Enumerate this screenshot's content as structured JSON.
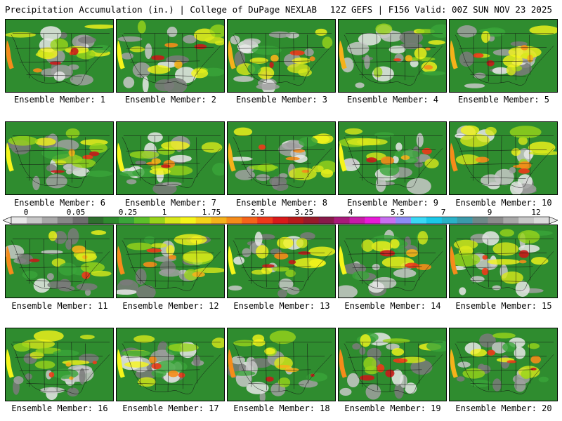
{
  "header": {
    "title": "Precipitation Accumulation (in.) | College of DuPage NEXLAB",
    "run_info": "12Z GEFS | F156 Valid: 00Z SUN NOV 23 2025"
  },
  "panels": [
    {
      "label": "Ensemble Member: 1"
    },
    {
      "label": "Ensemble Member: 2"
    },
    {
      "label": "Ensemble Member: 3"
    },
    {
      "label": "Ensemble Member: 4"
    },
    {
      "label": "Ensemble Member: 5"
    },
    {
      "label": "Ensemble Member: 6"
    },
    {
      "label": "Ensemble Member: 7"
    },
    {
      "label": "Ensemble Member: 8"
    },
    {
      "label": "Ensemble Member: 9"
    },
    {
      "label": "Ensemble Member: 10"
    },
    {
      "label": "Ensemble Member: 11"
    },
    {
      "label": "Ensemble Member: 12"
    },
    {
      "label": "Ensemble Member: 13"
    },
    {
      "label": "Ensemble Member: 14"
    },
    {
      "label": "Ensemble Member: 15"
    },
    {
      "label": "Ensemble Member: 16"
    },
    {
      "label": "Ensemble Member: 17"
    },
    {
      "label": "Ensemble Member: 18"
    },
    {
      "label": "Ensemble Member: 19"
    },
    {
      "label": "Ensemble Member: 20"
    }
  ],
  "colorbar": {
    "labels": [
      "0",
      "0.05",
      "0.25",
      "1",
      "1.75",
      "2.5",
      "3.25",
      "4",
      "5.5",
      "7",
      "9",
      "12"
    ],
    "colors": [
      "#e8e8e8",
      "#c8c8c8",
      "#a8a8a8",
      "#888888",
      "#6e6e6e",
      "#2e6e2e",
      "#2e8b2e",
      "#3aa53a",
      "#5cbf2a",
      "#99d41a",
      "#d8e81a",
      "#f5f51a",
      "#f5d21a",
      "#f5b21a",
      "#f58c1a",
      "#f5641a",
      "#ee3a1a",
      "#d81a1a",
      "#b81a1a",
      "#981a2a",
      "#881a4a",
      "#a81a7a",
      "#c81aa8",
      "#e81ad8",
      "#c86ef0",
      "#8c8cf5",
      "#3ad8f5",
      "#1ac8e8",
      "#2ab2c8",
      "#3a9aaa",
      "#6e8888",
      "#8c8c8c",
      "#a8a8a8",
      "#c8c8c8",
      "#dcdcdc"
    ]
  }
}
